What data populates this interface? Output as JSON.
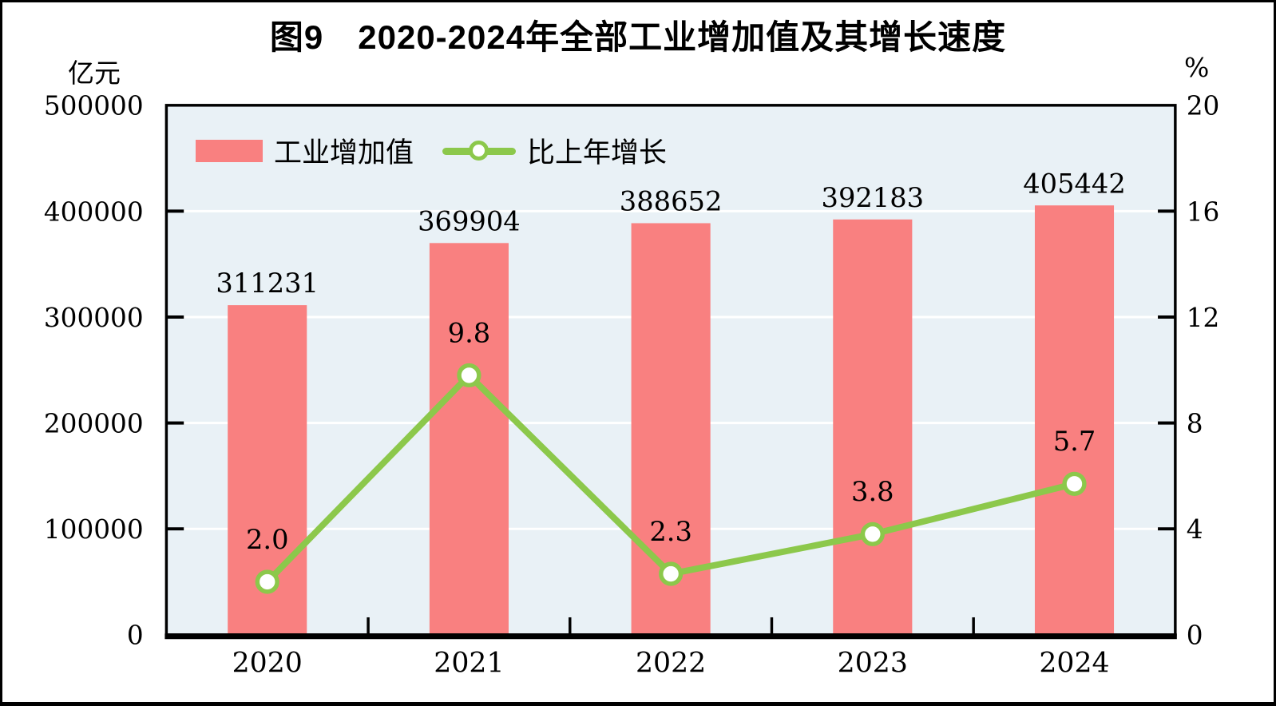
{
  "title": "图9　2020-2024年全部工业增加值及其增长速度",
  "left_axis": {
    "unit": "亿元",
    "tick_labels": [
      "500000",
      "400000",
      "300000",
      "200000",
      "100000",
      "0"
    ],
    "min": 0,
    "max": 500000
  },
  "right_axis": {
    "unit": "%",
    "tick_labels": [
      "20",
      "16",
      "12",
      "8",
      "4",
      "0"
    ],
    "min": 0,
    "max": 20
  },
  "legend": {
    "items": [
      {
        "label": "工业增加值",
        "marker": "bar-swatch",
        "color": "#f98080"
      },
      {
        "label": "比上年增长",
        "marker": "line-dot",
        "color": "#8cc84b"
      }
    ]
  },
  "chart_data": {
    "type": "bar+line",
    "title": "图9　2020-2024年全部工业增加值及其增长速度",
    "categories": [
      "2020",
      "2021",
      "2022",
      "2023",
      "2024"
    ],
    "series": [
      {
        "name": "工业增加值",
        "type": "bar",
        "axis": "left",
        "unit": "亿元",
        "color": "#f98080",
        "values": [
          311231,
          369904,
          388652,
          392183,
          405442
        ],
        "labels": [
          "311231",
          "369904",
          "388652",
          "392183",
          "405442"
        ]
      },
      {
        "name": "比上年增长",
        "type": "line",
        "axis": "right",
        "unit": "%",
        "color": "#8cc84b",
        "values": [
          2.0,
          9.8,
          2.3,
          3.8,
          5.7
        ],
        "labels": [
          "2.0",
          "9.8",
          "2.3",
          "3.8",
          "5.7"
        ]
      }
    ],
    "left_ylim": [
      0,
      500000
    ],
    "right_ylim": [
      0,
      20
    ],
    "grid": true,
    "gridline_color": "#ffffff",
    "plot_background": "#e9f1f6",
    "legend_position": "top-left-inside"
  },
  "colors": {
    "bar": "#f98080",
    "line": "#8cc84b",
    "marker_fill": "#ffffff",
    "plot_bg": "#e9f1f6",
    "grid": "#ffffff",
    "axis": "#000000",
    "text": "#000000",
    "page_bg": "#ffffff"
  }
}
